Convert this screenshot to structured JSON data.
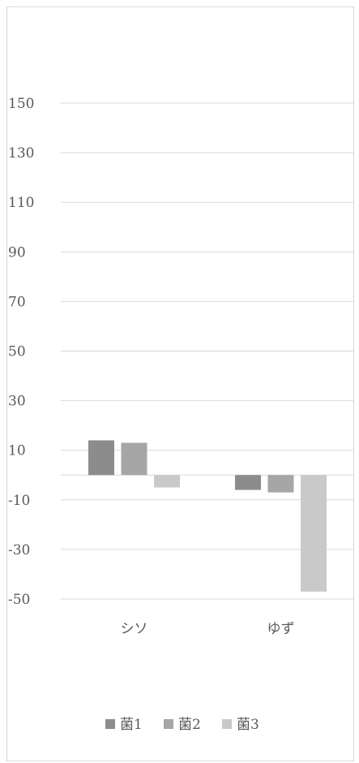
{
  "chart_data": {
    "type": "bar",
    "categories": [
      "シソ",
      "ゆず"
    ],
    "series": [
      {
        "name": "菌1",
        "values": [
          14,
          -6
        ],
        "color": "#8c8c8c"
      },
      {
        "name": "菌2",
        "values": [
          13,
          -7
        ],
        "color": "#a6a6a6"
      },
      {
        "name": "菌3",
        "values": [
          -5,
          -47
        ],
        "color": "#c9c9c9"
      }
    ],
    "ylim": [
      -50,
      150
    ],
    "y_ticks": [
      150,
      130,
      110,
      90,
      70,
      50,
      30,
      10,
      -10,
      -30,
      -50
    ],
    "grid": true,
    "legend_position": "bottom",
    "title": "",
    "xlabel": "",
    "ylabel": ""
  }
}
